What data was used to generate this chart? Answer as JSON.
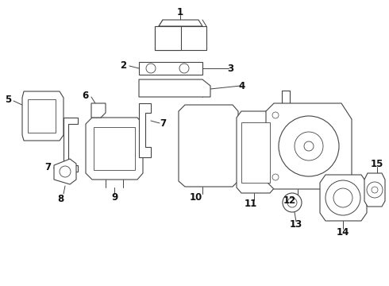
{
  "bg_color": "#ffffff",
  "line_color": "#444444",
  "label_color": "#111111",
  "figsize": [
    4.9,
    3.6
  ],
  "dpi": 100
}
